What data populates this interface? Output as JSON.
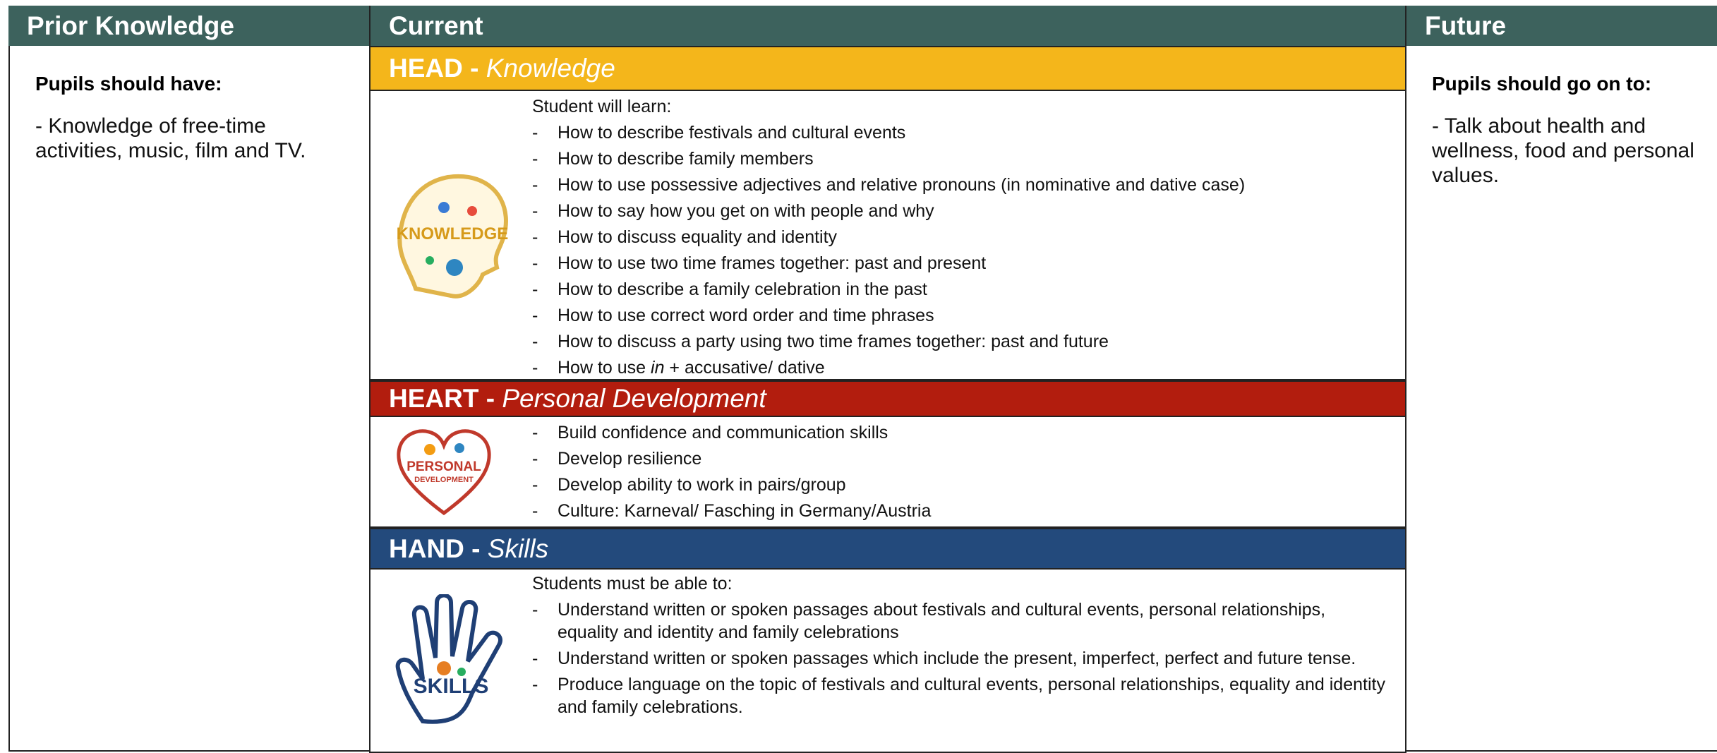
{
  "header": {
    "prior": "Prior Knowledge",
    "current": "Current",
    "future": "Future"
  },
  "prior": {
    "heading": "Pupils should have:",
    "text": "- Knowledge of free-time activities, music, film and TV."
  },
  "future": {
    "heading": "Pupils should go on to:",
    "text": "- Talk about health and wellness, food and personal values."
  },
  "sections": [
    {
      "title": "HEAD -",
      "subtitle": "Knowledge",
      "intro": "Student will learn:",
      "dash": "-",
      "items": [
        "How to describe festivals and cultural events",
        "How to describe family members",
        "How to use possessive adjectives and relative pronouns (in nominative and dative case)",
        "How to say how you get on with people and why",
        "How to discuss equality and identity",
        "How to use two time frames together: past and present",
        "How to describe a family celebration in the past",
        "How to use correct word order and time phrases",
        "How to discuss a party using two time frames together: past and future",
        {
          "before": "How to use ",
          "italic": "in",
          "after": " + accusative/ dative"
        }
      ]
    },
    {
      "title": "HEART -",
      "subtitle": "Personal Development",
      "intro": null,
      "dash": "-",
      "items": [
        "Build confidence and communication skills",
        "Develop resilience",
        "Develop ability to work in pairs/group",
        "Culture: Karneval/ Fasching in Germany/Austria"
      ]
    },
    {
      "title": "HAND -",
      "subtitle": "Skills",
      "intro": "Students must be able to:",
      "dash": "-",
      "items": [
        "Understand written or spoken passages about festivals and cultural events, personal relationships, equality and identity and family celebrations",
        "Understand written or spoken passages which include the present, imperfect, perfect and future tense.",
        "Produce language on the topic of festivals and cultural events, personal relationships, equality and identity and family celebrations."
      ]
    }
  ]
}
